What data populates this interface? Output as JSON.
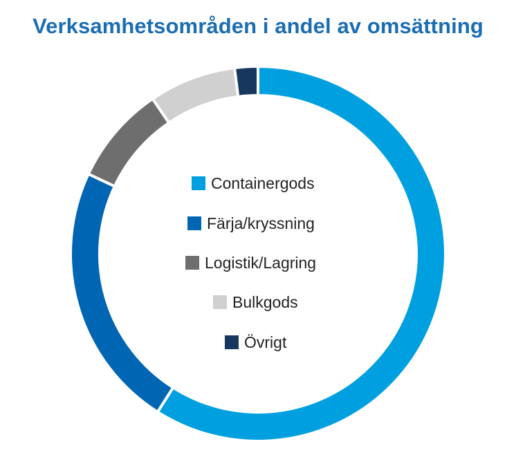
{
  "chart_data": {
    "type": "pie",
    "title": "Verksamhetsområden i andel av omsättning",
    "donut": true,
    "legend_position": "center",
    "categories": [
      "Containergods",
      "Färja/kryssning",
      "Logistik/Lagring",
      "Bulkgods",
      "Övrigt"
    ],
    "values": [
      59,
      23,
      8.5,
      7.5,
      2
    ],
    "value_unit": "%",
    "colors": [
      "#00a0e0",
      "#0066b3",
      "#6e6e6e",
      "#d0d0d0",
      "#17375e"
    ]
  }
}
